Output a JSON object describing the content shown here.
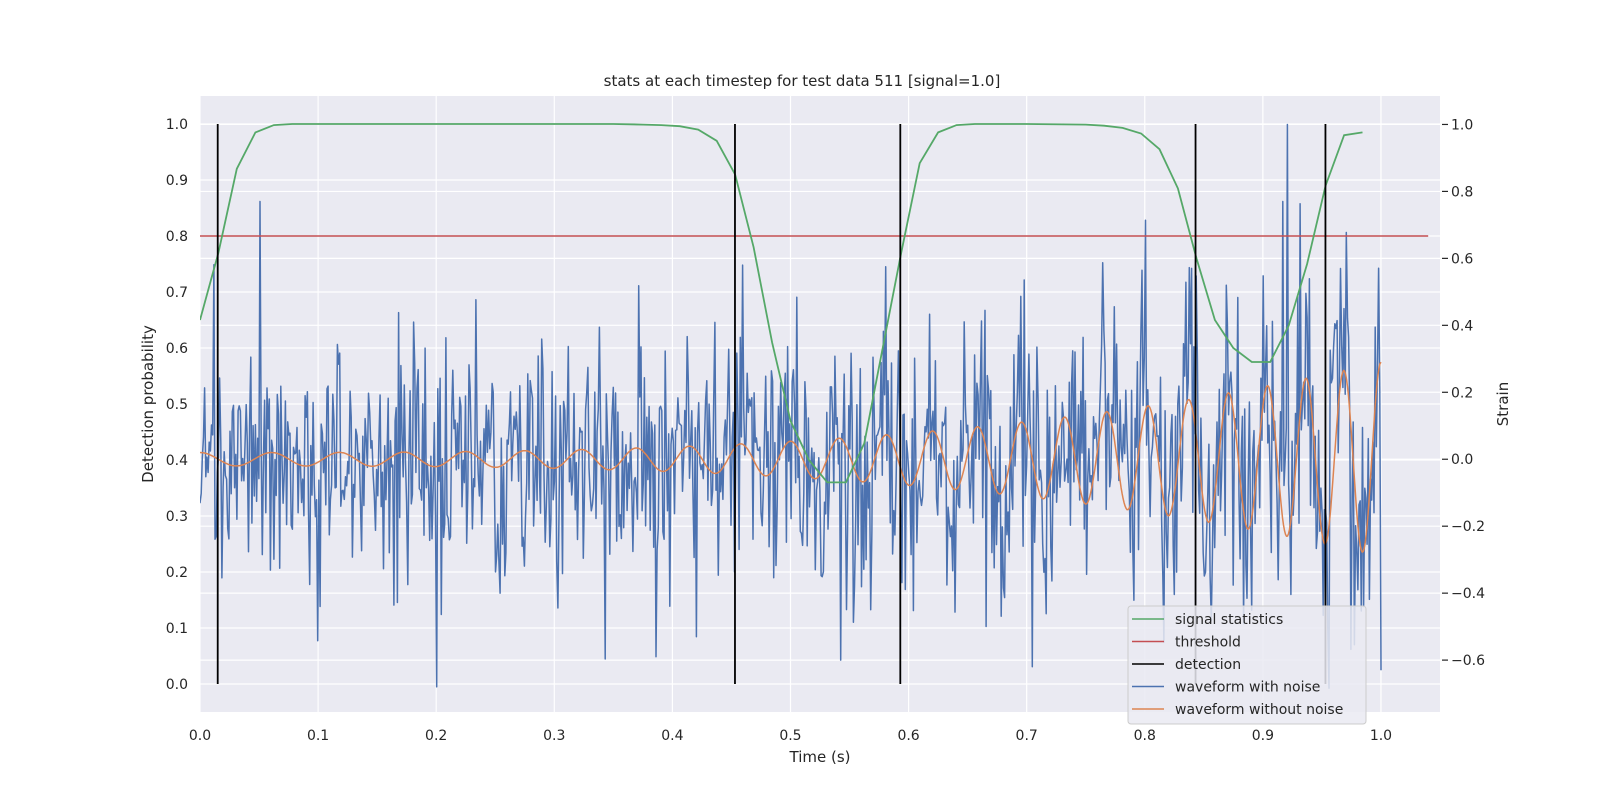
{
  "chart_data": {
    "type": "line",
    "title": "stats at each timestep for test data 511 [signal=1.0]",
    "xlabel": "Time (s)",
    "ylabel": "Detection probability",
    "y2label": "Strain",
    "xlim": [
      0.0,
      1.05
    ],
    "ylim": [
      -0.05,
      1.05
    ],
    "y2lim": [
      -0.755,
      1.085
    ],
    "xticks": [
      0.0,
      0.1,
      0.2,
      0.3,
      0.4,
      0.5,
      0.6,
      0.7,
      0.8,
      0.9,
      1.0
    ],
    "xtick_labels": [
      "0.0",
      "0.1",
      "0.2",
      "0.3",
      "0.4",
      "0.5",
      "0.6",
      "0.7",
      "0.8",
      "0.9",
      "1.0"
    ],
    "yticks": [
      0.0,
      0.1,
      0.2,
      0.3,
      0.4,
      0.5,
      0.6,
      0.7,
      0.8,
      0.9,
      1.0
    ],
    "ytick_labels": [
      "0.0",
      "0.1",
      "0.2",
      "0.3",
      "0.4",
      "0.5",
      "0.6",
      "0.7",
      "0.8",
      "0.9",
      "1.0"
    ],
    "y2ticks": [
      -0.6,
      -0.4,
      -0.2,
      0.0,
      0.2,
      0.4,
      0.6,
      0.8,
      1.0
    ],
    "y2tick_labels": [
      "−0.6",
      "−0.4",
      "−0.2",
      "0.0",
      "0.2",
      "0.4",
      "0.6",
      "0.8",
      "1.0"
    ],
    "grid": true,
    "legend_position": "lower-right",
    "series": [
      {
        "name": "signal statistics",
        "color": "#55a868",
        "axis": "left",
        "x": [
          0.0,
          0.0156,
          0.0312,
          0.0469,
          0.0625,
          0.0781,
          0.1,
          0.2,
          0.3,
          0.35,
          0.375,
          0.3906,
          0.4062,
          0.4219,
          0.4375,
          0.4531,
          0.4688,
          0.4844,
          0.5,
          0.5156,
          0.5312,
          0.5469,
          0.5625,
          0.5781,
          0.5938,
          0.6094,
          0.625,
          0.6406,
          0.6562,
          0.7,
          0.75,
          0.7656,
          0.7812,
          0.7969,
          0.8125,
          0.8281,
          0.8438,
          0.8594,
          0.875,
          0.8906,
          0.9062,
          0.9219,
          0.9375,
          0.9531,
          0.9688,
          0.9844
        ],
        "values": [
          0.65,
          0.77,
          0.92,
          0.985,
          0.998,
          1.0,
          1.0,
          1.0,
          1.0,
          1.0,
          0.999,
          0.998,
          0.996,
          0.99,
          0.97,
          0.91,
          0.78,
          0.61,
          0.47,
          0.4,
          0.36,
          0.36,
          0.43,
          0.6,
          0.77,
          0.93,
          0.985,
          0.998,
          1.0,
          1.0,
          0.999,
          0.997,
          0.993,
          0.983,
          0.955,
          0.885,
          0.76,
          0.65,
          0.6,
          0.575,
          0.575,
          0.64,
          0.75,
          0.89,
          0.98,
          0.985
        ]
      },
      {
        "name": "threshold",
        "color": "#c44e52",
        "axis": "left",
        "x": [
          0.0,
          1.04
        ],
        "values": [
          0.8,
          0.8
        ]
      },
      {
        "name": "detection",
        "color": "#000000",
        "axis": "left",
        "type": "vlines",
        "x": [
          0.015,
          0.453,
          0.593,
          0.843,
          0.953
        ],
        "ymin": 0.0,
        "ymax": 1.0
      },
      {
        "name": "waveform with noise",
        "color": "#4c72b0",
        "axis": "right",
        "x_start": 0.0,
        "x_end": 1.0,
        "n_points": 1024,
        "envelope": {
          "t": [
            0.0,
            0.5,
            0.9,
            1.0
          ],
          "sigma": [
            0.13,
            0.15,
            0.18,
            0.2
          ]
        },
        "extremes": [
          {
            "x": 0.051,
            "value": 0.77
          },
          {
            "x": 0.2,
            "value": -0.68
          },
          {
            "x": 0.42,
            "value": -0.53
          },
          {
            "x": 0.459,
            "value": 0.58
          },
          {
            "x": 0.543,
            "value": -0.6
          },
          {
            "x": 0.705,
            "value": -0.62
          },
          {
            "x": 0.84,
            "value": 0.57
          },
          {
            "x": 0.917,
            "value": 0.77
          },
          {
            "x": 0.921,
            "value": 1.0
          },
          {
            "x": 1.0,
            "value": -0.63
          }
        ]
      },
      {
        "name": "waveform without noise",
        "color": "#dd8452",
        "axis": "right",
        "x_start": 0.0,
        "x_end": 1.0,
        "freq_hz_start": 16,
        "freq_hz_end": 32,
        "amplitude_start": 0.02,
        "amplitude_end": 0.29
      }
    ]
  }
}
